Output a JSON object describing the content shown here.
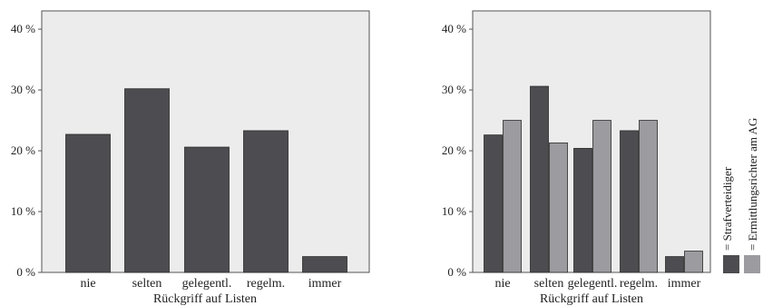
{
  "chart_data": [
    {
      "type": "bar",
      "xlabel": "Rückgriff auf Listen",
      "ylabel": "",
      "ylim": [
        0,
        43
      ],
      "yticks": [
        "0 %",
        "10 %",
        "20 %",
        "30 %",
        "40 %"
      ],
      "yticks_values": [
        0,
        10,
        20,
        30,
        40
      ],
      "categories": [
        "nie",
        "selten",
        "gelegentl.",
        "regelm.",
        "immer"
      ],
      "series": [
        {
          "name": "",
          "color": "#4d4d51",
          "values": [
            22.7,
            30.2,
            20.6,
            23.3,
            2.6
          ]
        }
      ],
      "plot_background": "#ececec",
      "grid": false
    },
    {
      "type": "bar",
      "xlabel": "Rückgriff auf Listen",
      "ylabel": "",
      "ylim": [
        0,
        43
      ],
      "yticks": [
        "0 %",
        "10 %",
        "20 %",
        "30 %",
        "40 %"
      ],
      "yticks_values": [
        0,
        10,
        20,
        30,
        40
      ],
      "categories": [
        "nie",
        "selten",
        "gelegentl.",
        "regelm.",
        "immer"
      ],
      "series": [
        {
          "name": "Strafverteidiger",
          "color": "#4d4d51",
          "values": [
            22.6,
            30.6,
            20.4,
            23.3,
            2.6
          ]
        },
        {
          "name": "Ermittlungsrichter am AG",
          "color": "#9b9ba0",
          "values": [
            25.0,
            21.3,
            25.0,
            25.0,
            3.5
          ]
        }
      ],
      "plot_background": "#ececec",
      "grid": false,
      "legend": {
        "placement": "right, vertical",
        "entries": [
          "= Strafverteidiger",
          "= Ermittlungsrichter am AG"
        ]
      }
    }
  ]
}
